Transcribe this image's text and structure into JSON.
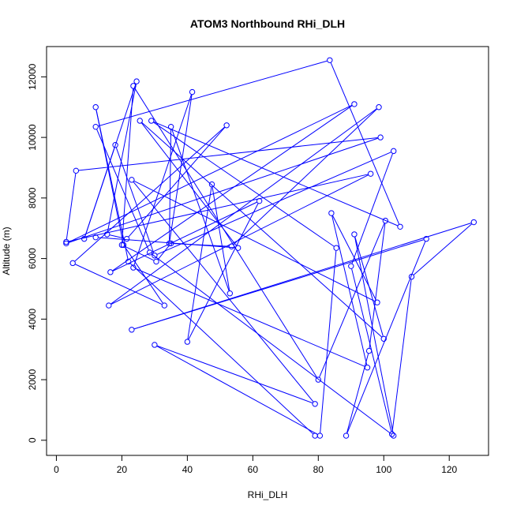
{
  "chart_data": {
    "type": "line",
    "title": "ATOM3 Northbound RHi_DLH",
    "xlabel": "RHi_DLH",
    "ylabel": "Altitude (m)",
    "xlim": [
      -3,
      132
    ],
    "ylim": [
      -500,
      13000
    ],
    "x_ticks": [
      0,
      20,
      40,
      60,
      80,
      100,
      120
    ],
    "y_ticks": [
      0,
      2000,
      4000,
      6000,
      8000,
      10000,
      12000
    ],
    "x_tick_labels": [
      "0",
      "20",
      "40",
      "60",
      "80",
      "100",
      "120"
    ],
    "y_tick_labels": [
      "0",
      "2000",
      "4000",
      "6000",
      "8000",
      "10000",
      "12000"
    ],
    "grid": false,
    "marker": "open-circle",
    "series_color": "#0000ff",
    "points": [
      [
        79.0,
        150
      ],
      [
        22.0,
        5900
      ],
      [
        12.0,
        11000
      ],
      [
        20.5,
        6450
      ],
      [
        33.0,
        4450
      ],
      [
        5.0,
        5850
      ],
      [
        52.0,
        10400
      ],
      [
        21.5,
        6650
      ],
      [
        15.5,
        6800
      ],
      [
        24.5,
        11850
      ],
      [
        8.5,
        6650
      ],
      [
        18.0,
        9750
      ],
      [
        30.0,
        6100
      ],
      [
        103.0,
        9550
      ],
      [
        90.0,
        5750
      ],
      [
        102.5,
        200
      ],
      [
        108.5,
        5400
      ],
      [
        127.5,
        7200
      ],
      [
        23.0,
        3650
      ],
      [
        113.0,
        6650
      ],
      [
        88.5,
        150
      ],
      [
        95.5,
        2950
      ],
      [
        100.5,
        7250
      ],
      [
        80.0,
        2000
      ],
      [
        23.5,
        11700
      ],
      [
        20.0,
        6450
      ],
      [
        30.5,
        5900
      ],
      [
        35.0,
        6500
      ],
      [
        53.5,
        6400
      ],
      [
        98.5,
        11000
      ],
      [
        16.0,
        4450
      ],
      [
        96.0,
        8800
      ],
      [
        3.0,
        6550
      ],
      [
        6.0,
        8900
      ],
      [
        99.0,
        10000
      ],
      [
        3.0,
        6500
      ],
      [
        91.0,
        11100
      ],
      [
        16.5,
        5550
      ],
      [
        62.0,
        7900
      ],
      [
        40.0,
        3250
      ],
      [
        47.5,
        8450
      ],
      [
        53.0,
        4850
      ],
      [
        35.0,
        10350
      ],
      [
        34.5,
        6500
      ],
      [
        41.5,
        11500
      ],
      [
        23.5,
        5700
      ],
      [
        95.0,
        2400
      ],
      [
        84.0,
        7500
      ],
      [
        98.0,
        4550
      ],
      [
        23.0,
        8600
      ],
      [
        79.0,
        1200
      ],
      [
        30.0,
        3150
      ],
      [
        80.5,
        150
      ],
      [
        85.5,
        6350
      ],
      [
        29.0,
        10550
      ],
      [
        105.0,
        7050
      ],
      [
        83.5,
        12550
      ],
      [
        12.0,
        10350
      ],
      [
        28.5,
        6200
      ],
      [
        103.0,
        150
      ],
      [
        91.0,
        6800
      ],
      [
        100.0,
        3350
      ],
      [
        25.5,
        10550
      ],
      [
        55.5,
        6350
      ],
      [
        12.0,
        6700
      ]
    ]
  }
}
